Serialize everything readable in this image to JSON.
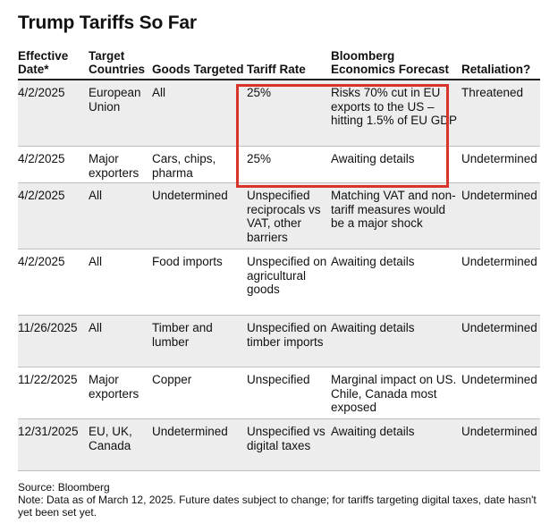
{
  "title": "Trump Tariffs So Far",
  "headers": {
    "effective_date": "Effective Date*",
    "target_countries": "Target Countries",
    "goods_targeted": "Goods Targeted",
    "tariff_rate": "Tariff Rate",
    "forecast": "Bloomberg Economics Forecast",
    "retaliation": "Retaliation?"
  },
  "rows": [
    {
      "date": "4/2/2025",
      "countries": "European Union",
      "goods": "All",
      "rate": "25%",
      "forecast": "Risks 70% cut in EU exports to the US – hitting 1.5% of EU GDP",
      "retaliation": "Threatened"
    },
    {
      "date": "4/2/2025",
      "countries": "Major exporters",
      "goods": "Cars, chips, pharma",
      "rate": "25%",
      "forecast": "Awaiting details",
      "retaliation": "Undetermined"
    },
    {
      "date": "4/2/2025",
      "countries": "All",
      "goods": "Undetermined",
      "rate": "Unspecified reciprocals vs VAT, other barriers",
      "forecast": "Matching VAT and non-tariff measures would be a major shock",
      "retaliation": "Undetermined"
    },
    {
      "date": "4/2/2025",
      "countries": "All",
      "goods": "Food imports",
      "rate": "Unspecified on agricultural goods",
      "forecast": "Awaiting details",
      "retaliation": "Undetermined"
    },
    {
      "date": "11/26/2025",
      "countries": "All",
      "goods": "Timber and lumber",
      "rate": "Unspecified on timber imports",
      "forecast": "Awaiting details",
      "retaliation": "Undetermined"
    },
    {
      "date": "11/22/2025",
      "countries": "Major exporters",
      "goods": "Copper",
      "rate": "Unspecified",
      "forecast": "Marginal impact on US. Chile, Canada most exposed",
      "retaliation": "Undetermined"
    },
    {
      "date": "12/31/2025",
      "countries": "EU, UK, Canada",
      "goods": "Undetermined",
      "rate": "Unspecified vs digital taxes",
      "forecast": "Awaiting details",
      "retaliation": "Undetermined"
    }
  ],
  "source": "Source: Bloomberg",
  "note": "Note: Data as of March 12, 2025. Future dates subject to change; for tariffs targeting digital taxes, date hasn't yet been set yet.",
  "colors": {
    "highlight": "#d9342b",
    "alt_row": "#ededed"
  }
}
